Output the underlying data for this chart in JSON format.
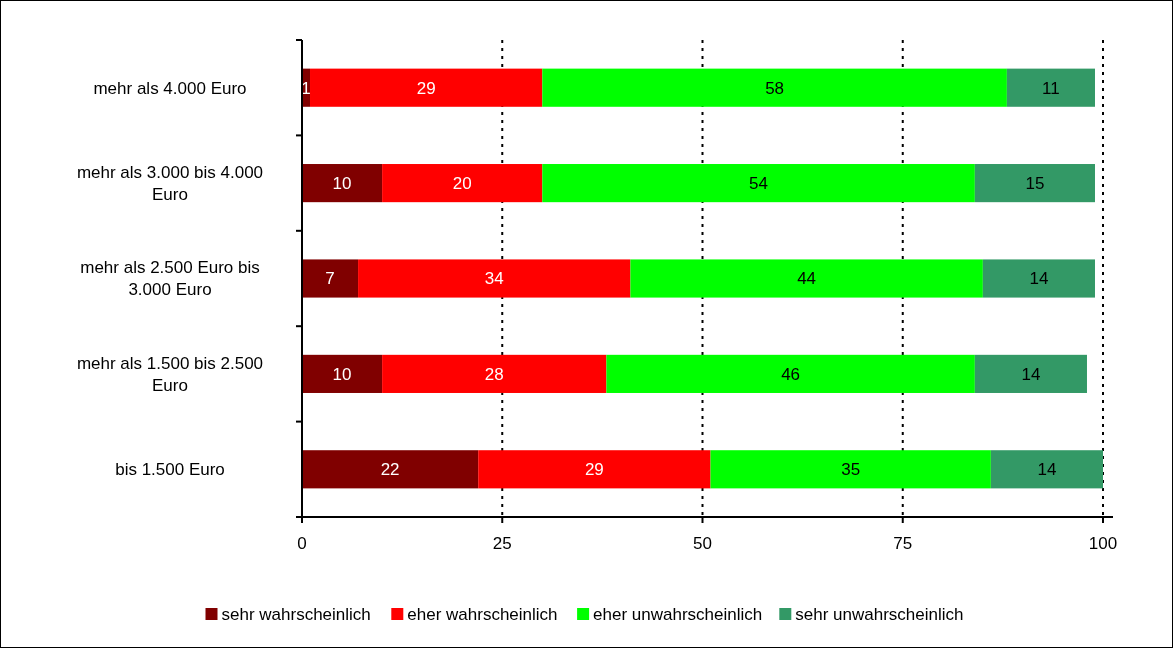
{
  "chart_data": {
    "type": "bar",
    "orientation": "horizontal",
    "stacked": true,
    "categories": [
      "mehr als 4.000 Euro",
      "mehr als 3.000 bis 4.000 Euro",
      "mehr als 2.500 Euro bis 3.000 Euro",
      "mehr als 1.500 bis 2.500 Euro",
      "bis 1.500 Euro"
    ],
    "series": [
      {
        "name": "sehr wahrscheinlich",
        "color": "#800000",
        "values": [
          1,
          10,
          7,
          10,
          22
        ]
      },
      {
        "name": "eher wahrscheinlich",
        "color": "#ff0000",
        "values": [
          29,
          20,
          34,
          28,
          29
        ]
      },
      {
        "name": "eher unwahrscheinlich",
        "color": "#00ff00",
        "values": [
          58,
          54,
          44,
          46,
          35
        ]
      },
      {
        "name": "sehr unwahrscheinlich",
        "color": "#339966",
        "values": [
          11,
          15,
          14,
          14,
          14
        ]
      }
    ],
    "xlim": [
      0,
      100
    ],
    "xticks": [
      0,
      25,
      50,
      75,
      100
    ],
    "grid": "x",
    "line_style": "dotted",
    "legend": "bottom",
    "data_labels": true
  }
}
